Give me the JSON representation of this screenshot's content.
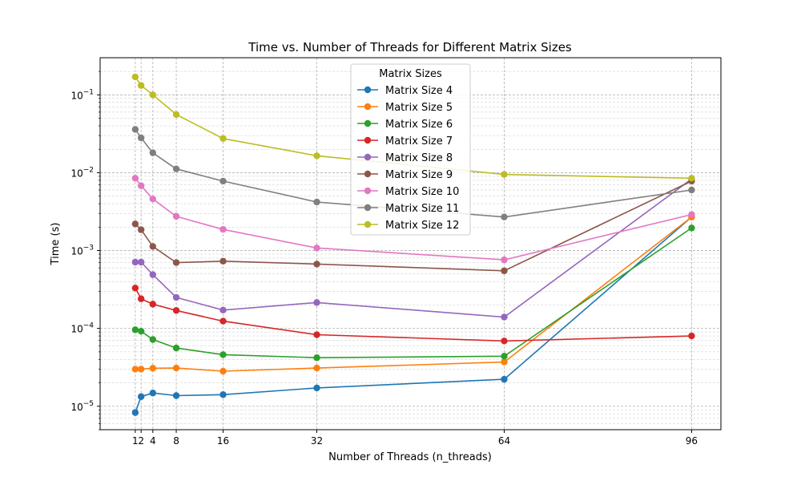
{
  "chart_data": {
    "type": "line",
    "title": "Time vs. Number of Threads for Different Matrix Sizes",
    "xlabel": "Number of Threads (n_threads)",
    "ylabel": "Time (s)",
    "yscale": "log",
    "ylim": [
      5e-06,
      0.3
    ],
    "xlim": [
      -5,
      101
    ],
    "x": [
      1,
      2,
      4,
      8,
      16,
      32,
      64,
      96
    ],
    "x_ticks": [
      1,
      2,
      4,
      8,
      16,
      32,
      64,
      96
    ],
    "x_tick_labels": [
      "1",
      "2",
      "4",
      "8",
      "16",
      "32",
      "64",
      "96"
    ],
    "y_ticks": [
      1e-05,
      0.0001,
      0.001,
      0.01,
      0.1
    ],
    "y_tick_labels": [
      {
        "base": "10",
        "exp": "−5"
      },
      {
        "base": "10",
        "exp": "−4"
      },
      {
        "base": "10",
        "exp": "−3"
      },
      {
        "base": "10",
        "exp": "−2"
      },
      {
        "base": "10",
        "exp": "−1"
      }
    ],
    "grid": true,
    "legend": {
      "title": "Matrix Sizes",
      "placement": "upper-center"
    },
    "series": [
      {
        "name": "Matrix Size 4",
        "color": "#1f77b4",
        "values": [
          8.3e-06,
          1.33e-05,
          1.48e-05,
          1.37e-05,
          1.41e-05,
          1.72e-05,
          2.22e-05,
          0.0027
        ]
      },
      {
        "name": "Matrix Size 5",
        "color": "#ff7f0e",
        "values": [
          3e-05,
          3e-05,
          3.08e-05,
          3.1e-05,
          2.82e-05,
          3.1e-05,
          3.7e-05,
          0.0027
        ]
      },
      {
        "name": "Matrix Size 6",
        "color": "#2ca02c",
        "values": [
          9.6e-05,
          9.2e-05,
          7.2e-05,
          5.6e-05,
          4.6e-05,
          4.2e-05,
          4.4e-05,
          0.00195
        ]
      },
      {
        "name": "Matrix Size 7",
        "color": "#d62728",
        "values": [
          0.00033,
          0.00024,
          0.000205,
          0.00017,
          0.000124,
          8.3e-05,
          6.9e-05,
          8e-05
        ]
      },
      {
        "name": "Matrix Size 8",
        "color": "#9467bd",
        "values": [
          0.00071,
          0.00071,
          0.00049,
          0.00025,
          0.000172,
          0.000215,
          0.00014,
          0.0083
        ]
      },
      {
        "name": "Matrix Size 9",
        "color": "#8c564b",
        "values": [
          0.0022,
          0.00185,
          0.00113,
          0.0007,
          0.00073,
          0.00067,
          0.00055,
          0.0078
        ]
      },
      {
        "name": "Matrix Size 10",
        "color": "#e377c2",
        "values": [
          0.0085,
          0.0068,
          0.0046,
          0.00275,
          0.00187,
          0.00108,
          0.00076,
          0.0029
        ]
      },
      {
        "name": "Matrix Size 11",
        "color": "#7f7f7f",
        "values": [
          0.036,
          0.028,
          0.018,
          0.0112,
          0.0078,
          0.0042,
          0.0027,
          0.006
        ]
      },
      {
        "name": "Matrix Size 12",
        "color": "#bcbd22",
        "values": [
          0.17,
          0.132,
          0.1,
          0.056,
          0.0275,
          0.0165,
          0.0095,
          0.0085
        ]
      }
    ]
  }
}
